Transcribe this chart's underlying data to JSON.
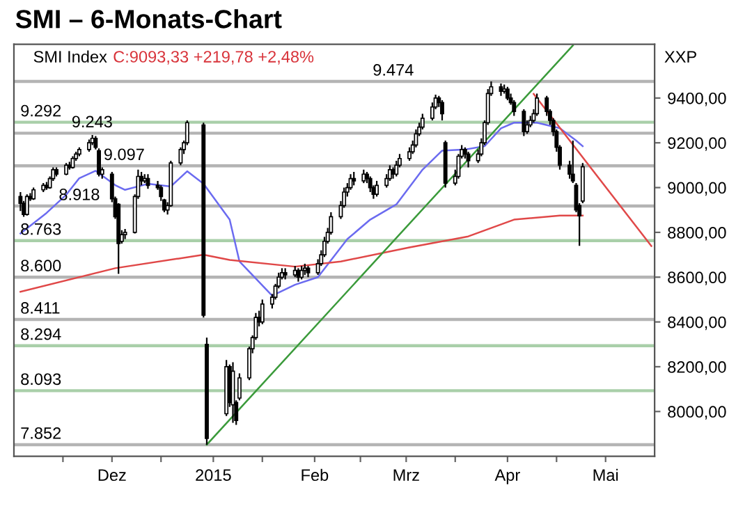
{
  "chart_data": {
    "type": "candlestick",
    "title": "SMI – 6-Monats-Chart",
    "annotations": [
      "SMI Index",
      "C:9093,33 +219,78 +2,48%",
      "XXP"
    ],
    "x": [
      "2014-11-03",
      "2014-11-04",
      "2014-11-05",
      "2014-11-06",
      "2014-11-07",
      "2014-11-10",
      "2014-11-11",
      "2014-11-12",
      "2014-11-13",
      "2014-11-14",
      "2014-11-17",
      "2014-11-18",
      "2014-11-19",
      "2014-11-20",
      "2014-11-21",
      "2014-11-24",
      "2014-11-25",
      "2014-11-26",
      "2014-11-27",
      "2014-11-28",
      "2014-12-01",
      "2014-12-02",
      "2014-12-03",
      "2014-12-04",
      "2014-12-05",
      "2014-12-08",
      "2014-12-09",
      "2014-12-10",
      "2014-12-11",
      "2014-12-12",
      "2014-12-15",
      "2014-12-16",
      "2014-12-17",
      "2014-12-18",
      "2014-12-19",
      "2014-12-22",
      "2014-12-23",
      "2014-12-24",
      "2014-12-29",
      "2014-12-30",
      "2015-01-05",
      "2015-01-06",
      "2015-01-07",
      "2015-01-08",
      "2015-01-09",
      "2015-01-12",
      "2015-01-13",
      "2015-01-14",
      "2015-01-15",
      "2015-01-16",
      "2015-01-19",
      "2015-01-20",
      "2015-01-21",
      "2015-01-22",
      "2015-01-23",
      "2015-01-26",
      "2015-01-27",
      "2015-01-28",
      "2015-01-29",
      "2015-01-30",
      "2015-02-02",
      "2015-02-03",
      "2015-02-04",
      "2015-02-05",
      "2015-02-06",
      "2015-02-09",
      "2015-02-10",
      "2015-02-11",
      "2015-02-12",
      "2015-02-13",
      "2015-02-16",
      "2015-02-17",
      "2015-02-18",
      "2015-02-19",
      "2015-02-20",
      "2015-02-23",
      "2015-02-24",
      "2015-02-25",
      "2015-02-26",
      "2015-02-27",
      "2015-03-02",
      "2015-03-03",
      "2015-03-04",
      "2015-03-05",
      "2015-03-06",
      "2015-03-09",
      "2015-03-10",
      "2015-03-11",
      "2015-03-12",
      "2015-03-13",
      "2015-03-16",
      "2015-03-17",
      "2015-03-18",
      "2015-03-19",
      "2015-03-20",
      "2015-03-23",
      "2015-03-24",
      "2015-03-25",
      "2015-03-26",
      "2015-03-27",
      "2015-03-30",
      "2015-03-31",
      "2015-04-01",
      "2015-04-02",
      "2015-04-03",
      "2015-04-06",
      "2015-04-07",
      "2015-04-08",
      "2015-04-09",
      "2015-04-10",
      "2015-04-13",
      "2015-04-14",
      "2015-04-15",
      "2015-04-16",
      "2015-04-17",
      "2015-04-20",
      "2015-04-21",
      "2015-04-22",
      "2015-04-23",
      "2015-04-24"
    ],
    "ohlc": [
      [
        8960,
        8980,
        8895,
        8930
      ],
      [
        8930,
        8940,
        8870,
        8880
      ],
      [
        8880,
        8970,
        8875,
        8960
      ],
      [
        8960,
        8975,
        8940,
        8950
      ],
      [
        8950,
        9000,
        8945,
        8990
      ],
      [
        8990,
        9020,
        8980,
        9010
      ],
      [
        9010,
        9025,
        8990,
        9000
      ],
      [
        9000,
        9050,
        8995,
        9040
      ],
      [
        9040,
        9090,
        9030,
        9080
      ],
      [
        9080,
        9090,
        9050,
        9060
      ],
      [
        9060,
        9110,
        9055,
        9100
      ],
      [
        9100,
        9115,
        9080,
        9090
      ],
      [
        9090,
        9140,
        9085,
        9130
      ],
      [
        9130,
        9160,
        9120,
        9150
      ],
      [
        9150,
        9180,
        9140,
        9170
      ],
      [
        9170,
        9215,
        9160,
        9200
      ],
      [
        9200,
        9235,
        9190,
        9220
      ],
      [
        9220,
        9230,
        9170,
        9180
      ],
      [
        9165,
        9175,
        9050,
        9060
      ],
      [
        9060,
        9090,
        9040,
        9080
      ],
      [
        9060,
        9070,
        8935,
        8950
      ],
      [
        8950,
        8960,
        8860,
        8870
      ],
      [
        8925,
        8930,
        8615,
        8750
      ],
      [
        8760,
        8810,
        8750,
        8790
      ],
      [
        8790,
        8815,
        8770,
        8800
      ],
      [
        8800,
        8970,
        8795,
        8960
      ],
      [
        8960,
        9080,
        8950,
        9050
      ],
      [
        9050,
        9070,
        9010,
        9030
      ],
      [
        9030,
        9060,
        9020,
        9040
      ],
      [
        9040,
        9060,
        8995,
        9010
      ],
      [
        9010,
        9030,
        8990,
        9000
      ],
      [
        9000,
        9010,
        8940,
        8960
      ],
      [
        8945,
        8950,
        8890,
        8900
      ],
      [
        8900,
        8935,
        8880,
        8920
      ],
      [
        8920,
        9120,
        8915,
        9110
      ],
      [
        9110,
        9180,
        9100,
        9170
      ],
      [
        9170,
        9210,
        9150,
        9200
      ],
      [
        9200,
        9300,
        9190,
        9290
      ],
      [
        9280,
        9290,
        8420,
        8430
      ],
      [
        8300,
        8330,
        7852,
        7880
      ],
      [
        7990,
        8230,
        7980,
        8200
      ],
      [
        8200,
        8210,
        8020,
        8040
      ],
      [
        8030,
        8220,
        7950,
        8180
      ],
      [
        8040,
        8050,
        7940,
        7960
      ],
      [
        8060,
        8170,
        8050,
        8150
      ],
      [
        8150,
        8290,
        8140,
        8280
      ],
      [
        8280,
        8340,
        8260,
        8330
      ],
      [
        8330,
        8440,
        8320,
        8420
      ],
      [
        8420,
        8450,
        8380,
        8400
      ],
      [
        8400,
        8500,
        8390,
        8480
      ],
      [
        8480,
        8525,
        8460,
        8510
      ],
      [
        8510,
        8570,
        8500,
        8560
      ],
      [
        8560,
        8620,
        8550,
        8600
      ],
      [
        8600,
        8640,
        8590,
        8620
      ],
      [
        8620,
        8640,
        8590,
        8610
      ],
      [
        8610,
        8650,
        8600,
        8630
      ],
      [
        8630,
        8640,
        8580,
        8600
      ],
      [
        8600,
        8650,
        8590,
        8630
      ],
      [
        8630,
        8660,
        8610,
        8640
      ],
      [
        8640,
        8650,
        8600,
        8620
      ],
      [
        8620,
        8680,
        8610,
        8660
      ],
      [
        8660,
        8720,
        8650,
        8700
      ],
      [
        8700,
        8780,
        8690,
        8760
      ],
      [
        8760,
        8820,
        8750,
        8800
      ],
      [
        8800,
        8890,
        8790,
        8870
      ],
      [
        8870,
        8940,
        8860,
        8920
      ],
      [
        8920,
        9000,
        8910,
        8980
      ],
      [
        8980,
        9020,
        8960,
        9000
      ],
      [
        9000,
        9060,
        8990,
        9040
      ],
      [
        9040,
        9070,
        9010,
        9030
      ],
      [
        9030,
        9080,
        9020,
        9060
      ],
      [
        9060,
        9070,
        9020,
        9040
      ],
      [
        9040,
        9050,
        8980,
        9000
      ],
      [
        9000,
        9010,
        8950,
        8970
      ],
      [
        8970,
        9030,
        8960,
        9010
      ],
      [
        9010,
        9060,
        9000,
        9040
      ],
      [
        9040,
        9100,
        9030,
        9080
      ],
      [
        9080,
        9090,
        9040,
        9060
      ],
      [
        9060,
        9120,
        9050,
        9100
      ],
      [
        9100,
        9150,
        9090,
        9130
      ],
      [
        9130,
        9180,
        9120,
        9160
      ],
      [
        9160,
        9210,
        9150,
        9190
      ],
      [
        9190,
        9260,
        9180,
        9240
      ],
      [
        9240,
        9290,
        9230,
        9270
      ],
      [
        9270,
        9330,
        9260,
        9310
      ],
      [
        9310,
        9380,
        9300,
        9360
      ],
      [
        9360,
        9415,
        9350,
        9400
      ],
      [
        9400,
        9410,
        9360,
        9380
      ],
      [
        9380,
        9390,
        9300,
        9330
      ],
      [
        9200,
        9210,
        9000,
        9020
      ],
      [
        9020,
        9080,
        9010,
        9050
      ],
      [
        9050,
        9150,
        9040,
        9140
      ],
      [
        9140,
        9190,
        9130,
        9170
      ],
      [
        9170,
        9180,
        9130,
        9150
      ],
      [
        9150,
        9160,
        9090,
        9120
      ],
      [
        9120,
        9170,
        9110,
        9150
      ],
      [
        9150,
        9220,
        9140,
        9200
      ],
      [
        9200,
        9300,
        9190,
        9290
      ],
      [
        9290,
        9440,
        9280,
        9420
      ],
      [
        9420,
        9474,
        9410,
        9450
      ],
      [
        9450,
        9465,
        9410,
        9430
      ],
      [
        9430,
        9460,
        9420,
        9440
      ],
      [
        9440,
        9450,
        9390,
        9400
      ],
      [
        9400,
        9420,
        9370,
        9380
      ],
      [
        9380,
        9390,
        9320,
        9340
      ],
      [
        9340,
        9350,
        9230,
        9250
      ],
      [
        9250,
        9300,
        9240,
        9280
      ],
      [
        9280,
        9320,
        9270,
        9300
      ],
      [
        9300,
        9350,
        9290,
        9330
      ],
      [
        9330,
        9420,
        9320,
        9400
      ],
      [
        9400,
        9410,
        9320,
        9340
      ],
      [
        9340,
        9350,
        9280,
        9300
      ],
      [
        9300,
        9310,
        9230,
        9250
      ],
      [
        9250,
        9260,
        9160,
        9180
      ],
      [
        9180,
        9190,
        9080,
        9100
      ],
      [
        9100,
        9120,
        9040,
        9060
      ],
      [
        9060,
        9210,
        9020,
        9030
      ],
      [
        9010,
        9020,
        8890,
        8900
      ],
      [
        8920,
        8930,
        8740,
        8874
      ],
      [
        8940,
        9110,
        8930,
        9093
      ]
    ],
    "series": [
      {
        "type": "line",
        "color": "#6b6bf0",
        "x": [
          "2014-11-03",
          "2014-11-11",
          "2014-11-17",
          "2014-11-21",
          "2014-11-26",
          "2014-12-02",
          "2014-12-05",
          "2014-12-12",
          "2014-12-19",
          "2014-12-24",
          "2014-12-29",
          "2015-01-06",
          "2015-01-09",
          "2015-01-19",
          "2015-01-26",
          "2015-02-02",
          "2015-02-11",
          "2015-02-18",
          "2015-02-26",
          "2015-03-06",
          "2015-03-12",
          "2015-03-19",
          "2015-03-25",
          "2015-03-30",
          "2015-04-03",
          "2015-04-10",
          "2015-04-17",
          "2015-04-22",
          "2015-04-24"
        ],
        "values": [
          8795,
          8887,
          8968,
          9042,
          9075,
          9011,
          8990,
          9017,
          9005,
          9073,
          9017,
          8857,
          8670,
          8517,
          8566,
          8600,
          8770,
          8857,
          8925,
          9080,
          9165,
          9170,
          9185,
          9265,
          9290,
          9290,
          9265,
          9210,
          9185
        ]
      },
      {
        "type": "line",
        "color": "#e04848",
        "x": [
          "2014-11-03",
          "2014-12-02",
          "2014-12-29",
          "2015-01-06",
          "2015-01-26",
          "2015-02-09",
          "2015-03-02",
          "2015-03-20",
          "2015-04-03",
          "2015-04-17",
          "2015-04-24"
        ],
        "values": [
          8535,
          8640,
          8700,
          8677,
          8647,
          8670,
          8733,
          8782,
          8857,
          8875,
          8875
        ]
      },
      {
        "type": "line",
        "color": "#3a9a3a",
        "x": [
          "2014-12-30",
          "2015-04-21"
        ],
        "values": [
          7852,
          9635
        ]
      },
      {
        "type": "line",
        "color": "#e04848",
        "x": [
          "2015-04-09",
          "2015-05-15"
        ],
        "values": [
          9418,
          8739
        ]
      }
    ],
    "ref_lines": [
      {
        "axis": "y",
        "value": 9474,
        "label": "9.474",
        "color": "#b4b4b4"
      },
      {
        "axis": "y",
        "value": 9292,
        "label": "9.292",
        "color": "#a9cfa9"
      },
      {
        "axis": "y",
        "value": 9243,
        "label": "9.243",
        "color": "#b4b4b4"
      },
      {
        "axis": "y",
        "value": 9097,
        "label": "9.097",
        "color": "#b4b4b4"
      },
      {
        "axis": "y",
        "value": 8918,
        "label": "8.918",
        "color": "#b4b4b4"
      },
      {
        "axis": "y",
        "value": 8763,
        "label": "8.763",
        "color": "#a9cfa9"
      },
      {
        "axis": "y",
        "value": 8600,
        "label": "8.600",
        "color": "#b4b4b4"
      },
      {
        "axis": "y",
        "value": 8411,
        "label": "8.411",
        "color": "#b4b4b4"
      },
      {
        "axis": "y",
        "value": 8294,
        "label": "8.294",
        "color": "#a9cfa9"
      },
      {
        "axis": "y",
        "value": 8093,
        "label": "8.093",
        "color": "#a9cfa9"
      },
      {
        "axis": "y",
        "value": 7852,
        "label": "7.852",
        "color": "#b4b4b4"
      }
    ],
    "xlim": [
      "2014-11-01",
      "2015-05-16"
    ],
    "xticks": [
      {
        "value": "2014-11-16",
        "label": null
      },
      {
        "value": "2014-12-01",
        "label": "Dez"
      },
      {
        "value": "2014-12-16",
        "label": null
      },
      {
        "value": "2015-01-01",
        "label": "2015"
      },
      {
        "value": "2015-01-16",
        "label": null
      },
      {
        "value": "2015-02-01",
        "label": "Feb"
      },
      {
        "value": "2015-02-15",
        "label": null
      },
      {
        "value": "2015-03-01",
        "label": "Mrz"
      },
      {
        "value": "2015-03-16",
        "label": null
      },
      {
        "value": "2015-04-01",
        "label": "Apr"
      },
      {
        "value": "2015-04-16",
        "label": null
      },
      {
        "value": "2015-05-01",
        "label": "Mai"
      }
    ],
    "ylim": [
      7800,
      9640
    ],
    "yticks": [
      {
        "value": 8000,
        "label": "8000,00"
      },
      {
        "value": 8200,
        "label": "8200,00"
      },
      {
        "value": 8400,
        "label": "8400,00"
      },
      {
        "value": 8600,
        "label": "8600,00"
      },
      {
        "value": 8800,
        "label": "8800,00"
      },
      {
        "value": 9000,
        "label": "9000,00"
      },
      {
        "value": 9200,
        "label": "9200,00"
      },
      {
        "value": 9400,
        "label": "9400,00"
      }
    ],
    "grid": false
  }
}
